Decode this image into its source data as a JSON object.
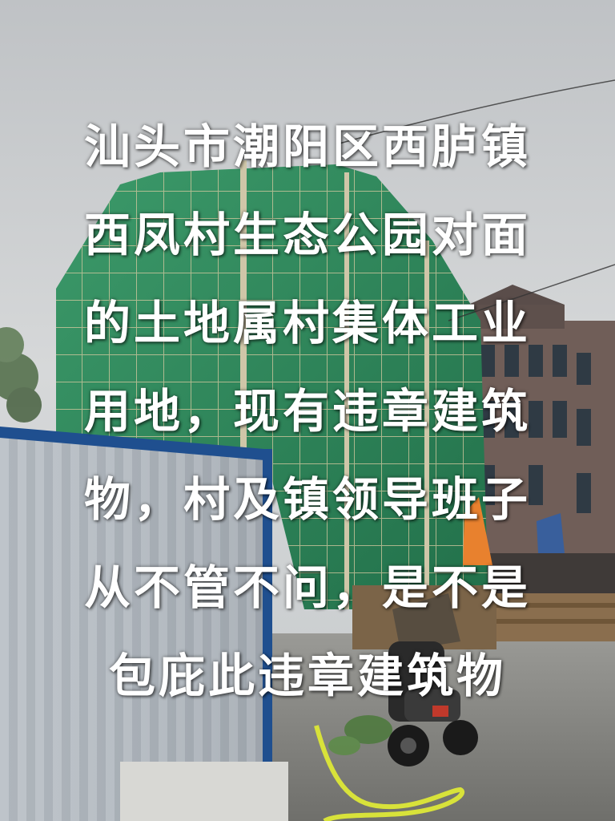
{
  "caption": {
    "lines": [
      "汕头市潮阳区西胪镇",
      "西凤村生态公园对面",
      "的土地属村集体工业",
      "用地，现有违章建筑",
      "物，村及镇领导班子",
      "从不管不问，是不是",
      "包庇此违章建筑物"
    ]
  },
  "colors": {
    "sky": "#c9ccce",
    "scaffold_net": "#2f8a5c",
    "fence": "#9aa3ad",
    "fence_trim": "#1f4f8f",
    "ground": "#8a8a86",
    "hose": "#d8e23a",
    "orange_tarp": "#e8812e",
    "building": "#6b5a55"
  },
  "icons": {
    "scooter": "scooter-icon"
  }
}
